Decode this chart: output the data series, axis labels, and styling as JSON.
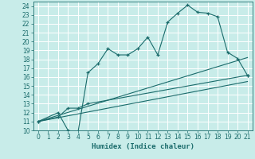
{
  "title": "",
  "xlabel": "Humidex (Indice chaleur)",
  "xlim": [
    -0.5,
    21.5
  ],
  "ylim": [
    10,
    24.5
  ],
  "yticks": [
    10,
    11,
    12,
    13,
    14,
    15,
    16,
    17,
    18,
    19,
    20,
    21,
    22,
    23,
    24
  ],
  "xticks": [
    0,
    1,
    2,
    3,
    4,
    5,
    6,
    7,
    8,
    9,
    10,
    11,
    12,
    13,
    14,
    15,
    16,
    17,
    18,
    19,
    20,
    21
  ],
  "bg_color": "#c8ece9",
  "line_color": "#1a6b6b",
  "grid_color": "#ffffff",
  "curve1_x": [
    0,
    2,
    3,
    4,
    5,
    6,
    7,
    8,
    9,
    10,
    11,
    12,
    13,
    14,
    15,
    16,
    17,
    18,
    19,
    20,
    21
  ],
  "curve1_y": [
    11,
    12,
    10,
    9.8,
    16.5,
    17.5,
    19.2,
    18.5,
    18.5,
    19.2,
    20.5,
    18.5,
    22.2,
    23.2,
    24.1,
    23.3,
    23.2,
    22.8,
    18.8,
    18.1,
    16.2
  ],
  "curve2_x": [
    0,
    2,
    3,
    4,
    5,
    21
  ],
  "curve2_y": [
    11,
    11.5,
    12.5,
    12.5,
    13.0,
    16.2
  ],
  "curve3_x": [
    0,
    21
  ],
  "curve3_y": [
    11,
    15.5
  ],
  "curve4_x": [
    0,
    21
  ],
  "curve4_y": [
    11,
    18.2
  ]
}
